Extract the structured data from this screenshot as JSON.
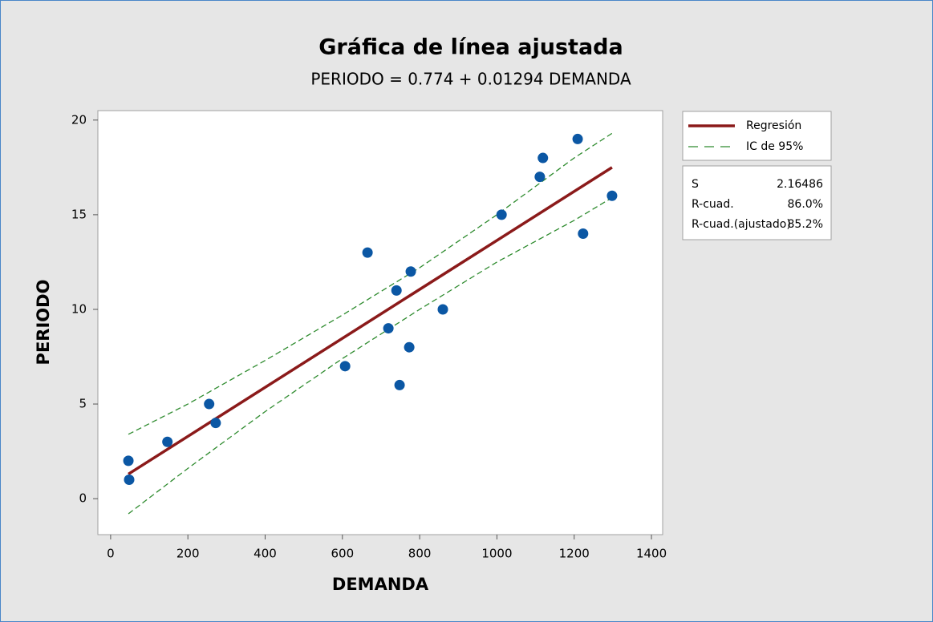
{
  "chart_data": {
    "type": "scatter",
    "title": "Gráfica de línea ajustada",
    "subtitle": "PERIODO = 0.774 + 0.01294 DEMANDA",
    "x_label": "DEMANDA",
    "y_label": "PERIODO",
    "xlim": [
      -33,
      1429
    ],
    "ylim": [
      -1.9,
      20.5
    ],
    "xticks": [
      0,
      200,
      400,
      600,
      800,
      1000,
      1200,
      1400
    ],
    "yticks": [
      0,
      5,
      10,
      15,
      20
    ],
    "points": {
      "color": "#0b57a4",
      "x": [
        46,
        48,
        147,
        255,
        272,
        607,
        665,
        719,
        740,
        748,
        773,
        777,
        860,
        1012,
        1111,
        1119,
        1209,
        1223,
        1298
      ],
      "values": [
        2,
        1,
        3,
        5,
        4,
        7,
        13,
        9,
        11,
        6,
        8,
        12,
        10,
        15,
        17,
        18,
        19,
        14,
        16
      ]
    },
    "series": [
      {
        "name": "Regresión",
        "color": "#8b1a1a",
        "style": "solid",
        "x": [
          46,
          1298
        ],
        "values": [
          1.3,
          17.5
        ]
      },
      {
        "name": "IC de 95%",
        "color": "#2e8b2e",
        "style": "dashed",
        "x": [
          46,
          200,
          400,
          600,
          800,
          1000,
          1200,
          1298
        ],
        "values": [
          3.4,
          5.0,
          7.3,
          9.7,
          12.2,
          15.0,
          18.0,
          19.3
        ],
        "lower": [
          -0.8,
          1.6,
          4.6,
          7.4,
          10.0,
          12.5,
          14.7,
          15.9
        ]
      }
    ],
    "stats": [
      {
        "label": "S",
        "value": "2.16486"
      },
      {
        "label": "R-cuad.",
        "value": "86.0%"
      },
      {
        "label": "R-cuad.(ajustado)",
        "value": "85.2%"
      }
    ]
  }
}
